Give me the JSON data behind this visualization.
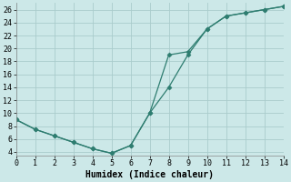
{
  "xlabel": "Humidex (Indice chaleur)",
  "bg_color": "#cce8e8",
  "line_color": "#2e7d70",
  "grid_color": "#aacccc",
  "line1_x": [
    0,
    1,
    2,
    3,
    4,
    5,
    6,
    7,
    8,
    9,
    10,
    11,
    12,
    13,
    14
  ],
  "line1_y": [
    9,
    7.5,
    6.5,
    5.5,
    4.5,
    3.8,
    5.0,
    10.0,
    14.0,
    19.0,
    23.0,
    25.0,
    25.5,
    26.0,
    26.5
  ],
  "line2_x": [
    0,
    1,
    2,
    3,
    4,
    5,
    6,
    7,
    8,
    9,
    10,
    11,
    12,
    13,
    14
  ],
  "line2_y": [
    9,
    7.5,
    6.5,
    5.5,
    4.5,
    3.8,
    5.0,
    10.0,
    19.0,
    19.5,
    23.0,
    25.0,
    25.5,
    26.0,
    26.5
  ],
  "xlim": [
    0,
    14
  ],
  "ylim": [
    3.5,
    27
  ],
  "yticks": [
    4,
    6,
    8,
    10,
    12,
    14,
    16,
    18,
    20,
    22,
    24,
    26
  ],
  "xticks": [
    0,
    1,
    2,
    3,
    4,
    5,
    6,
    7,
    8,
    9,
    10,
    11,
    12,
    13,
    14
  ],
  "font_family": "monospace",
  "tick_fontsize": 6,
  "label_fontsize": 7,
  "linewidth": 0.9,
  "markersize": 2.5
}
